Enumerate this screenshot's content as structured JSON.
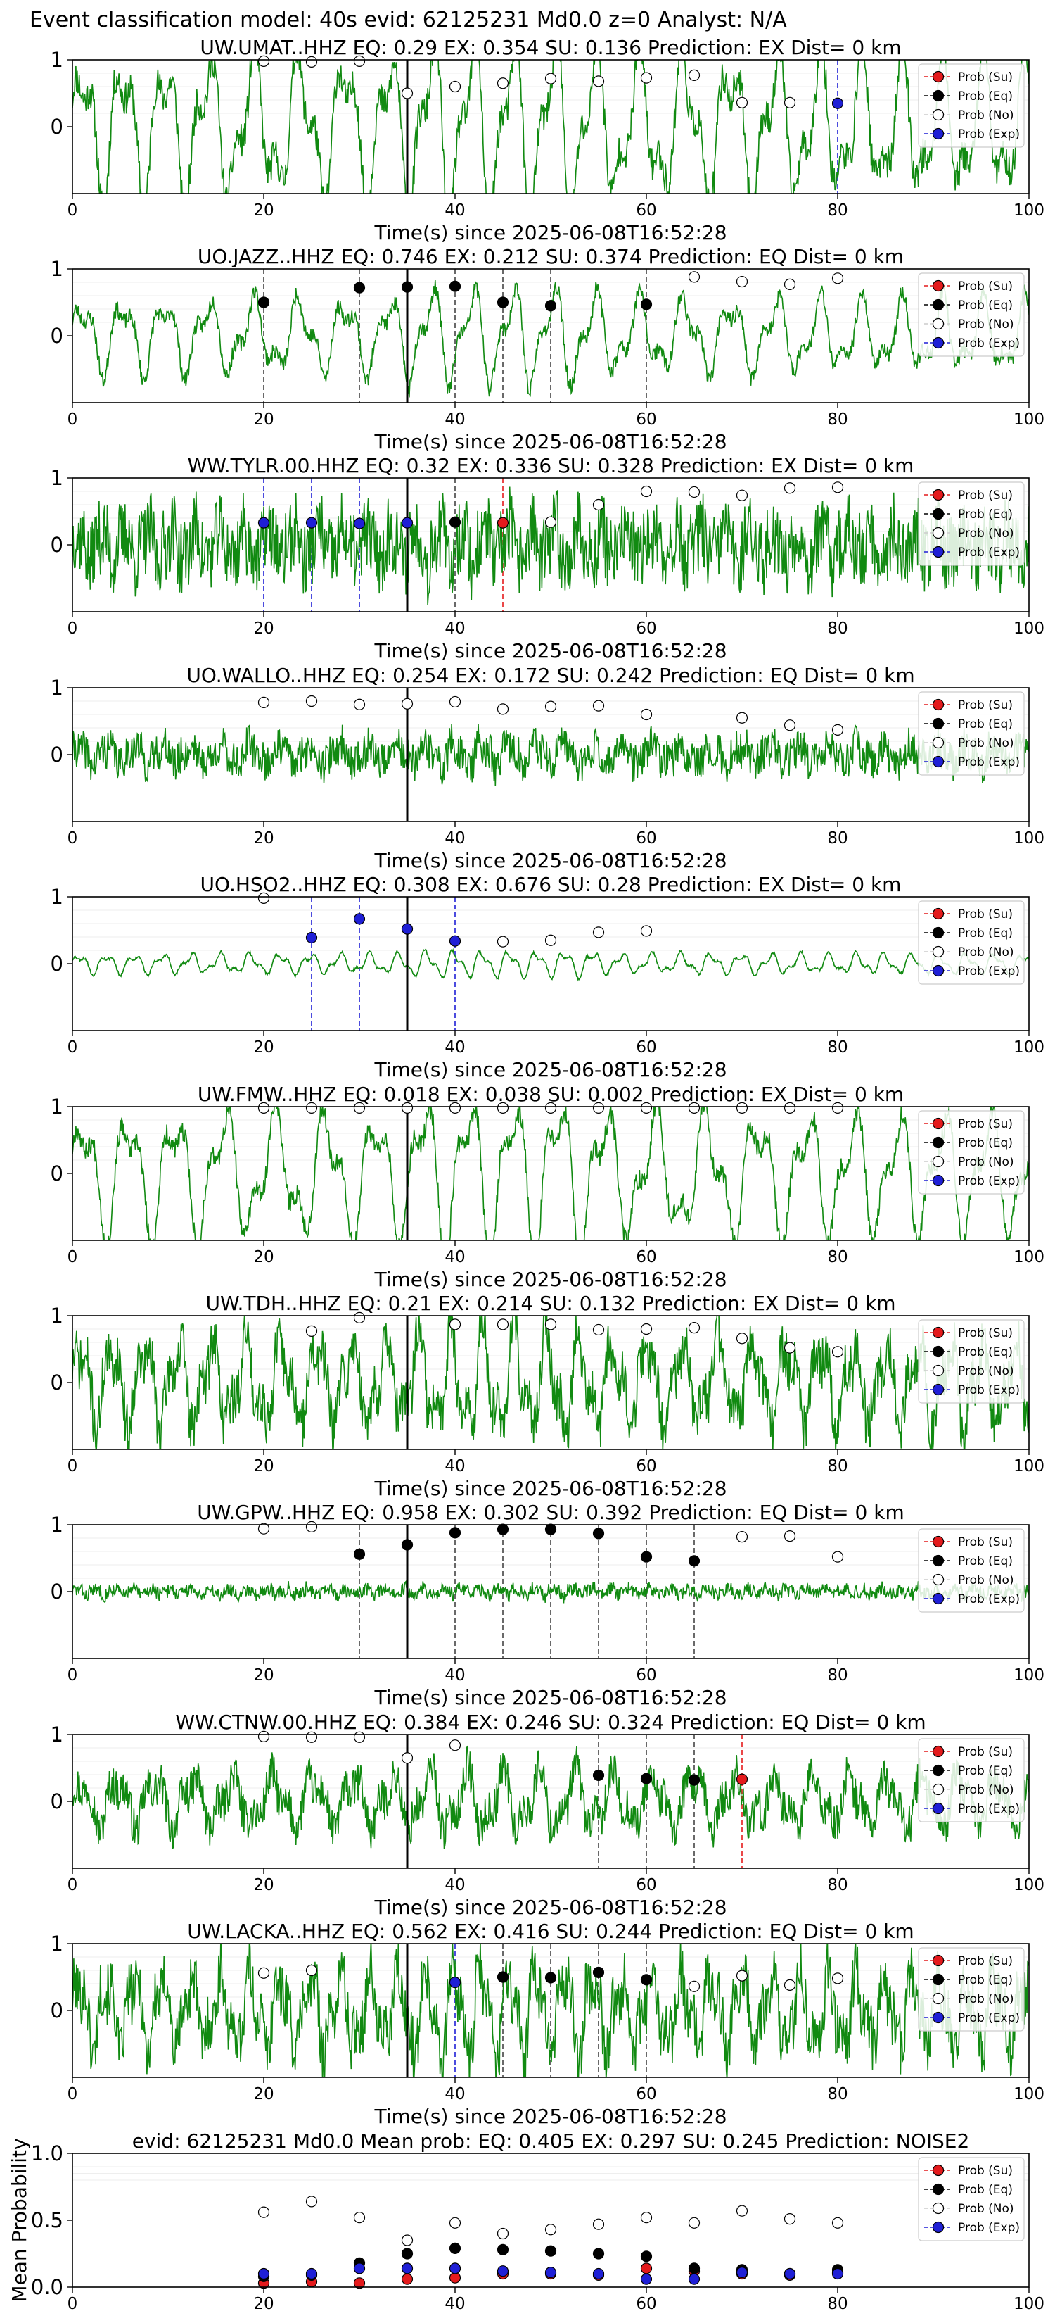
{
  "figure_title": "Event classification model: 40s evid: 62125231 Md0.0 z=0 Analyst: N/A",
  "legend_labels": [
    "Prob (Su)",
    "Prob (Eq)",
    "Prob (No)",
    "Prob (Exp)"
  ],
  "colors": {
    "su": "#e41a1c",
    "eq": "#000000",
    "no": "#ffffff",
    "exp": "#1f1fd6",
    "waveform": "#118a11",
    "pick": "#000000"
  },
  "chart_data": [
    {
      "type": "line",
      "title": "UW.UMAT..HHZ    EQ: 0.29   EX: 0.354   SU: 0.136    Prediction: EX     Dist= 0 km",
      "xlabel": "Time(s) since 2025-06-08T16:52:28",
      "ylabel": "",
      "xlim": [
        0,
        100
      ],
      "ylim": [
        -1,
        1
      ],
      "xticks": [
        0,
        20,
        40,
        60,
        80,
        100
      ],
      "yticks": [
        0,
        1
      ],
      "pick_time": 35,
      "waveform": {
        "amp": 0.85,
        "period": 4.5,
        "noise": 0.25,
        "seed": 11
      },
      "points": [
        {
          "x": 20,
          "y": 0.98,
          "c": "no"
        },
        {
          "x": 25,
          "y": 0.97,
          "c": "no"
        },
        {
          "x": 30,
          "y": 0.98,
          "c": "no"
        },
        {
          "x": 35,
          "y": 0.5,
          "c": "no"
        },
        {
          "x": 40,
          "y": 0.6,
          "c": "no"
        },
        {
          "x": 45,
          "y": 0.65,
          "c": "no"
        },
        {
          "x": 50,
          "y": 0.72,
          "c": "no"
        },
        {
          "x": 55,
          "y": 0.68,
          "c": "no"
        },
        {
          "x": 60,
          "y": 0.73,
          "c": "no"
        },
        {
          "x": 65,
          "y": 0.77,
          "c": "no"
        },
        {
          "x": 70,
          "y": 0.36,
          "c": "no"
        },
        {
          "x": 75,
          "y": 0.36,
          "c": "no"
        },
        {
          "x": 80,
          "y": 0.35,
          "c": "exp"
        }
      ]
    },
    {
      "type": "line",
      "title": "UO.JAZZ..HHZ   EQ: 0.746  EX: 0.212  SU: 0.374   Prediction: EQ     Dist= 0 km",
      "xlabel": "Time(s) since 2025-06-08T16:52:28",
      "ylabel": "",
      "xlim": [
        0,
        100
      ],
      "ylim": [
        -1,
        1
      ],
      "xticks": [
        0,
        20,
        40,
        60,
        80,
        100
      ],
      "yticks": [
        0,
        1
      ],
      "pick_time": 35,
      "waveform": {
        "amp": 0.45,
        "period": 4.5,
        "noise": 0.12,
        "seed": 23
      },
      "points": [
        {
          "x": 20,
          "y": 0.5,
          "c": "eq"
        },
        {
          "x": 30,
          "y": 0.72,
          "c": "eq"
        },
        {
          "x": 35,
          "y": 0.73,
          "c": "eq"
        },
        {
          "x": 40,
          "y": 0.74,
          "c": "eq"
        },
        {
          "x": 45,
          "y": 0.5,
          "c": "eq"
        },
        {
          "x": 50,
          "y": 0.45,
          "c": "eq"
        },
        {
          "x": 60,
          "y": 0.47,
          "c": "eq"
        },
        {
          "x": 65,
          "y": 0.88,
          "c": "no"
        },
        {
          "x": 70,
          "y": 0.81,
          "c": "no"
        },
        {
          "x": 75,
          "y": 0.77,
          "c": "no"
        },
        {
          "x": 80,
          "y": 0.86,
          "c": "no"
        }
      ]
    },
    {
      "type": "line",
      "title": "WW.TYLR.00.HHZ    EQ: 0.32   EX: 0.336   SU: 0.328    Prediction: EX     Dist= 0 km",
      "xlabel": "Time(s) since 2025-06-08T16:52:28",
      "ylabel": "",
      "xlim": [
        0,
        100
      ],
      "ylim": [
        -1,
        1
      ],
      "xticks": [
        0,
        20,
        40,
        60,
        80,
        100
      ],
      "yticks": [
        0,
        1
      ],
      "pick_time": 35,
      "waveform": {
        "amp": 0.2,
        "period": 2.5,
        "noise": 0.55,
        "seed": 37
      },
      "points": [
        {
          "x": 20,
          "y": 0.33,
          "c": "exp"
        },
        {
          "x": 25,
          "y": 0.33,
          "c": "exp"
        },
        {
          "x": 30,
          "y": 0.32,
          "c": "exp"
        },
        {
          "x": 35,
          "y": 0.33,
          "c": "exp"
        },
        {
          "x": 40,
          "y": 0.34,
          "c": "eq"
        },
        {
          "x": 45,
          "y": 0.33,
          "c": "su"
        },
        {
          "x": 50,
          "y": 0.34,
          "c": "no"
        },
        {
          "x": 55,
          "y": 0.6,
          "c": "no"
        },
        {
          "x": 60,
          "y": 0.8,
          "c": "no"
        },
        {
          "x": 65,
          "y": 0.79,
          "c": "no"
        },
        {
          "x": 70,
          "y": 0.74,
          "c": "no"
        },
        {
          "x": 75,
          "y": 0.85,
          "c": "no"
        },
        {
          "x": 80,
          "y": 0.86,
          "c": "no"
        }
      ]
    },
    {
      "type": "line",
      "title": "UO.WALLO..HHZ    EQ: 0.254   EX: 0.172   SU: 0.242    Prediction: EQ     Dist= 0 km",
      "xlabel": "Time(s) since 2025-06-08T16:52:28",
      "ylabel": "",
      "xlim": [
        0,
        100
      ],
      "ylim": [
        -1,
        1
      ],
      "xticks": [
        0,
        20,
        40,
        60,
        80,
        100
      ],
      "yticks": [
        0,
        1
      ],
      "pick_time": 35,
      "waveform": {
        "amp": 0.12,
        "period": 3,
        "noise": 0.28,
        "seed": 41
      },
      "points": [
        {
          "x": 20,
          "y": 0.78,
          "c": "no"
        },
        {
          "x": 25,
          "y": 0.8,
          "c": "no"
        },
        {
          "x": 30,
          "y": 0.75,
          "c": "no"
        },
        {
          "x": 35,
          "y": 0.76,
          "c": "no"
        },
        {
          "x": 40,
          "y": 0.79,
          "c": "no"
        },
        {
          "x": 45,
          "y": 0.68,
          "c": "no"
        },
        {
          "x": 50,
          "y": 0.72,
          "c": "no"
        },
        {
          "x": 55,
          "y": 0.73,
          "c": "no"
        },
        {
          "x": 60,
          "y": 0.6,
          "c": "no"
        },
        {
          "x": 70,
          "y": 0.55,
          "c": "no"
        },
        {
          "x": 75,
          "y": 0.44,
          "c": "no"
        },
        {
          "x": 80,
          "y": 0.37,
          "c": "no"
        }
      ]
    },
    {
      "type": "line",
      "title": "UO.HSO2..HHZ    EQ: 0.308   EX: 0.676   SU: 0.28    Prediction: EX     Dist= 0 km",
      "xlabel": "Time(s) since 2025-06-08T16:52:28",
      "ylabel": "",
      "xlim": [
        0,
        100
      ],
      "ylim": [
        -1,
        1
      ],
      "xticks": [
        0,
        20,
        40,
        60,
        80,
        100
      ],
      "yticks": [
        0,
        1
      ],
      "pick_time": 35,
      "waveform": {
        "amp": 0.12,
        "period": 3,
        "noise": 0.02,
        "seed": 53
      },
      "points": [
        {
          "x": 20,
          "y": 0.98,
          "c": "no"
        },
        {
          "x": 25,
          "y": 0.39,
          "c": "exp"
        },
        {
          "x": 30,
          "y": 0.67,
          "c": "exp"
        },
        {
          "x": 35,
          "y": 0.52,
          "c": "exp"
        },
        {
          "x": 40,
          "y": 0.34,
          "c": "exp"
        },
        {
          "x": 45,
          "y": 0.33,
          "c": "no"
        },
        {
          "x": 50,
          "y": 0.35,
          "c": "no"
        },
        {
          "x": 55,
          "y": 0.47,
          "c": "no"
        },
        {
          "x": 60,
          "y": 0.49,
          "c": "no"
        }
      ]
    },
    {
      "type": "line",
      "title": "UW.FMW..HHZ    EQ: 0.018   EX: 0.038   SU: 0.002    Prediction: EX     Dist= 0 km",
      "xlabel": "Time(s) since 2025-06-08T16:52:28",
      "ylabel": "",
      "xlim": [
        0,
        100
      ],
      "ylim": [
        -1,
        1
      ],
      "xticks": [
        0,
        20,
        40,
        60,
        80,
        100
      ],
      "yticks": [
        0,
        1
      ],
      "pick_time": 35,
      "waveform": {
        "amp": 0.75,
        "period": 5,
        "noise": 0.15,
        "seed": 67
      },
      "points": [
        {
          "x": 20,
          "y": 0.98,
          "c": "no"
        },
        {
          "x": 25,
          "y": 0.98,
          "c": "no"
        },
        {
          "x": 30,
          "y": 0.98,
          "c": "no"
        },
        {
          "x": 35,
          "y": 0.98,
          "c": "no"
        },
        {
          "x": 40,
          "y": 0.98,
          "c": "no"
        },
        {
          "x": 45,
          "y": 0.98,
          "c": "no"
        },
        {
          "x": 50,
          "y": 0.98,
          "c": "no"
        },
        {
          "x": 55,
          "y": 0.98,
          "c": "no"
        },
        {
          "x": 60,
          "y": 0.98,
          "c": "no"
        },
        {
          "x": 65,
          "y": 0.98,
          "c": "no"
        },
        {
          "x": 70,
          "y": 0.98,
          "c": "no"
        },
        {
          "x": 75,
          "y": 0.98,
          "c": "no"
        },
        {
          "x": 80,
          "y": 0.98,
          "c": "no"
        }
      ]
    },
    {
      "type": "line",
      "title": "UW.TDH..HHZ   EQ: 0.21   EX: 0.214   SU: 0.132    Prediction: EX     Dist= 0 km",
      "xlabel": "Time(s) since 2025-06-08T16:52:28",
      "ylabel": "",
      "xlim": [
        0,
        100
      ],
      "ylim": [
        -1,
        1
      ],
      "xticks": [
        0,
        20,
        40,
        60,
        80,
        100
      ],
      "yticks": [
        0,
        1
      ],
      "pick_time": 35,
      "waveform": {
        "amp": 0.5,
        "period": 3.5,
        "noise": 0.4,
        "seed": 71
      },
      "points": [
        {
          "x": 25,
          "y": 0.77,
          "c": "no"
        },
        {
          "x": 30,
          "y": 0.97,
          "c": "no"
        },
        {
          "x": 40,
          "y": 0.87,
          "c": "no"
        },
        {
          "x": 45,
          "y": 0.87,
          "c": "no"
        },
        {
          "x": 50,
          "y": 0.87,
          "c": "no"
        },
        {
          "x": 55,
          "y": 0.79,
          "c": "no"
        },
        {
          "x": 60,
          "y": 0.8,
          "c": "no"
        },
        {
          "x": 65,
          "y": 0.82,
          "c": "no"
        },
        {
          "x": 70,
          "y": 0.66,
          "c": "no"
        },
        {
          "x": 75,
          "y": 0.52,
          "c": "no"
        },
        {
          "x": 80,
          "y": 0.46,
          "c": "no"
        }
      ]
    },
    {
      "type": "line",
      "title": "UW.GPW..HHZ   EQ: 0.958   EX: 0.302   SU: 0.392    Prediction: EQ     Dist= 0 km",
      "xlabel": "Time(s) since 2025-06-08T16:52:28",
      "ylabel": "",
      "xlim": [
        0,
        100
      ],
      "ylim": [
        -1,
        1
      ],
      "xticks": [
        0,
        20,
        40,
        60,
        80,
        100
      ],
      "yticks": [
        0,
        1
      ],
      "pick_time": 35,
      "waveform": {
        "amp": 0.04,
        "period": 2,
        "noise": 0.1,
        "seed": 83
      },
      "points": [
        {
          "x": 20,
          "y": 0.94,
          "c": "no"
        },
        {
          "x": 25,
          "y": 0.97,
          "c": "no"
        },
        {
          "x": 30,
          "y": 0.56,
          "c": "eq"
        },
        {
          "x": 35,
          "y": 0.7,
          "c": "eq"
        },
        {
          "x": 40,
          "y": 0.88,
          "c": "eq"
        },
        {
          "x": 45,
          "y": 0.93,
          "c": "eq"
        },
        {
          "x": 50,
          "y": 0.93,
          "c": "eq"
        },
        {
          "x": 55,
          "y": 0.87,
          "c": "eq"
        },
        {
          "x": 60,
          "y": 0.52,
          "c": "eq"
        },
        {
          "x": 65,
          "y": 0.46,
          "c": "eq"
        },
        {
          "x": 70,
          "y": 0.82,
          "c": "no"
        },
        {
          "x": 75,
          "y": 0.83,
          "c": "no"
        },
        {
          "x": 80,
          "y": 0.52,
          "c": "no"
        }
      ]
    },
    {
      "type": "line",
      "title": "WW.CTNW.00.HHZ    EQ: 0.384   EX: 0.246   SU: 0.324    Prediction: EQ     Dist= 0 km",
      "xlabel": "Time(s) since 2025-06-08T16:52:28",
      "ylabel": "",
      "xlim": [
        0,
        100
      ],
      "ylim": [
        -1,
        1
      ],
      "xticks": [
        0,
        20,
        40,
        60,
        80,
        100
      ],
      "yticks": [
        0,
        1
      ],
      "pick_time": 35,
      "waveform": {
        "amp": 0.3,
        "period": 4,
        "noise": 0.3,
        "seed": 97
      },
      "points": [
        {
          "x": 20,
          "y": 0.97,
          "c": "no"
        },
        {
          "x": 25,
          "y": 0.96,
          "c": "no"
        },
        {
          "x": 30,
          "y": 0.96,
          "c": "no"
        },
        {
          "x": 35,
          "y": 0.65,
          "c": "no"
        },
        {
          "x": 40,
          "y": 0.84,
          "c": "no"
        },
        {
          "x": 55,
          "y": 0.39,
          "c": "eq"
        },
        {
          "x": 60,
          "y": 0.34,
          "c": "eq"
        },
        {
          "x": 65,
          "y": 0.32,
          "c": "eq"
        },
        {
          "x": 70,
          "y": 0.33,
          "c": "su"
        }
      ]
    },
    {
      "type": "line",
      "title": "UW.LACKA..HHZ    EQ: 0.562   EX: 0.416   SU: 0.244    Prediction: EQ     Dist= 0 km",
      "xlabel": "Time(s) since 2025-06-08T16:52:28",
      "ylabel": "",
      "xlim": [
        0,
        100
      ],
      "ylim": [
        -1,
        1
      ],
      "xticks": [
        0,
        20,
        40,
        60,
        80,
        100
      ],
      "yticks": [
        0,
        1
      ],
      "pick_time": 35,
      "waveform": {
        "amp": 0.45,
        "period": 3,
        "noise": 0.45,
        "seed": 101
      },
      "points": [
        {
          "x": 20,
          "y": 0.56,
          "c": "no"
        },
        {
          "x": 25,
          "y": 0.6,
          "c": "no"
        },
        {
          "x": 40,
          "y": 0.42,
          "c": "exp"
        },
        {
          "x": 45,
          "y": 0.5,
          "c": "eq"
        },
        {
          "x": 50,
          "y": 0.49,
          "c": "eq"
        },
        {
          "x": 55,
          "y": 0.57,
          "c": "eq"
        },
        {
          "x": 60,
          "y": 0.46,
          "c": "eq"
        },
        {
          "x": 65,
          "y": 0.36,
          "c": "no"
        },
        {
          "x": 70,
          "y": 0.52,
          "c": "no"
        },
        {
          "x": 75,
          "y": 0.38,
          "c": "no"
        },
        {
          "x": 80,
          "y": 0.48,
          "c": "no"
        }
      ]
    },
    {
      "type": "scatter",
      "title": "evid: 62125231  Md0.0   Mean prob:    EQ: 0.405   EX: 0.297   SU: 0.245    Prediction: NOISE2",
      "xlabel": "",
      "ylabel": "Mean Probability",
      "xlim": [
        0,
        100
      ],
      "ylim": [
        0,
        1
      ],
      "xticks": [
        0,
        20,
        40,
        60,
        80,
        100
      ],
      "yticks": [
        0,
        0.5,
        1
      ],
      "ytick_labels": [
        "0.0",
        "0.5",
        "1.0"
      ],
      "series": [
        {
          "c": "su",
          "x": [
            20,
            25,
            30,
            35,
            40,
            45,
            50,
            55,
            60,
            65,
            70,
            75,
            80
          ],
          "y": [
            0.03,
            0.04,
            0.03,
            0.06,
            0.07,
            0.1,
            0.1,
            0.09,
            0.14,
            0.12,
            0.1,
            0.09,
            0.11
          ]
        },
        {
          "c": "eq",
          "x": [
            20,
            25,
            30,
            35,
            40,
            45,
            50,
            55,
            60,
            65,
            70,
            75,
            80
          ],
          "y": [
            0.08,
            0.09,
            0.18,
            0.25,
            0.29,
            0.28,
            0.27,
            0.25,
            0.23,
            0.14,
            0.13,
            0.1,
            0.13
          ]
        },
        {
          "c": "no",
          "x": [
            20,
            25,
            30,
            35,
            40,
            45,
            50,
            55,
            60,
            65,
            70,
            75,
            80
          ],
          "y": [
            0.56,
            0.64,
            0.52,
            0.35,
            0.48,
            0.4,
            0.43,
            0.47,
            0.52,
            0.48,
            0.57,
            0.51,
            0.48
          ]
        },
        {
          "c": "exp",
          "x": [
            20,
            25,
            30,
            35,
            40,
            45,
            50,
            55,
            60,
            65,
            70,
            75,
            80
          ],
          "y": [
            0.1,
            0.1,
            0.14,
            0.14,
            0.14,
            0.12,
            0.11,
            0.1,
            0.06,
            0.06,
            0.11,
            0.1,
            0.1
          ]
        }
      ]
    }
  ]
}
